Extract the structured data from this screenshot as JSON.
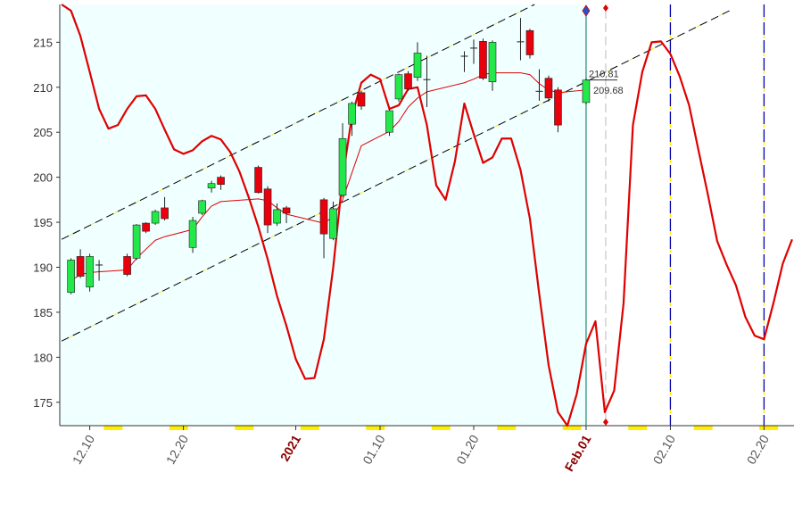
{
  "chart_data": {
    "type": "candlestick",
    "x": [
      8,
      9,
      10,
      11,
      14,
      15,
      16,
      17,
      18,
      21,
      22,
      23,
      24,
      28,
      29,
      30,
      31,
      35,
      36,
      37,
      38,
      39,
      42,
      43,
      44,
      45,
      46,
      50,
      51,
      52,
      53,
      56,
      57,
      58,
      59,
      60,
      63
    ],
    "open": [
      187.2,
      191.2,
      187.8,
      190.3,
      191.2,
      191.0,
      194.9,
      194.9,
      196.6,
      192.2,
      196.0,
      198.8,
      200.0,
      201.1,
      198.7,
      194.9,
      196.6,
      197.5,
      193.2,
      198.0,
      205.9,
      209.4,
      205.0,
      208.7,
      211.5,
      211.1,
      210.8,
      213.4,
      214.3,
      215.1,
      210.6,
      215.0,
      216.3,
      209.5,
      211.0,
      209.7,
      208.3
    ],
    "high": [
      191.0,
      192.0,
      191.5,
      190.8,
      191.5,
      194.8,
      195.0,
      196.4,
      197.8,
      195.6,
      197.5,
      199.6,
      200.2,
      201.3,
      199.0,
      197.1,
      196.8,
      197.7,
      197.3,
      206.0,
      208.4,
      209.6,
      207.6,
      211.5,
      211.8,
      215.0,
      213.5,
      214.0,
      215.3,
      215.4,
      215.2,
      217.7,
      216.5,
      212.0,
      211.3,
      210.0,
      211.0
    ],
    "low": [
      187.0,
      188.8,
      187.3,
      188.5,
      189.0,
      190.8,
      193.8,
      194.7,
      195.2,
      191.6,
      195.8,
      198.3,
      198.6,
      198.2,
      193.8,
      194.6,
      194.9,
      191.0,
      193.0,
      197.8,
      204.6,
      207.5,
      204.6,
      208.4,
      209.6,
      210.7,
      207.8,
      211.7,
      212.6,
      210.8,
      209.6,
      213.0,
      213.2,
      208.5,
      208.4,
      205.0,
      208.1
    ],
    "close": [
      190.8,
      189.0,
      191.2,
      190.2,
      189.2,
      194.7,
      194.0,
      196.2,
      195.4,
      195.2,
      197.4,
      199.3,
      199.2,
      198.3,
      194.7,
      196.4,
      196.0,
      193.7,
      196.5,
      204.3,
      208.2,
      207.9,
      207.4,
      211.4,
      209.8,
      213.8,
      210.9,
      213.5,
      214.4,
      211.0,
      215.0,
      215.1,
      213.6,
      209.6,
      208.8,
      205.8,
      210.8
    ],
    "up_color": "#22e84a",
    "down_color": "#e8000c",
    "series": [
      {
        "color": "#e00000",
        "width": 1,
        "x": [
          8,
          9,
          10,
          11,
          14,
          15,
          16,
          17,
          18,
          21,
          22,
          23,
          24,
          28,
          29,
          30,
          31,
          35,
          36,
          37,
          38,
          39,
          42,
          43,
          44,
          45,
          46,
          50,
          51,
          52,
          53,
          56,
          57,
          58,
          59,
          60,
          63
        ],
        "values": [
          188.5,
          189.2,
          189.4,
          189.5,
          189.7,
          191.0,
          192.0,
          193.0,
          193.4,
          194.2,
          195.6,
          196.8,
          197.3,
          197.6,
          197.4,
          196.6,
          195.9,
          194.9,
          195.6,
          197.5,
          200.5,
          203.5,
          205.1,
          206.2,
          207.8,
          208.8,
          209.5,
          210.5,
          210.9,
          211.4,
          211.6,
          211.6,
          211.4,
          210.4,
          209.7,
          209.4,
          209.7
        ]
      },
      {
        "color": "#e00000",
        "width": 2.2,
        "x": [
          7,
          8,
          9,
          10,
          11,
          12,
          13,
          14,
          15,
          16,
          17,
          18,
          19,
          20,
          21,
          22,
          23,
          24,
          25,
          26,
          27,
          28,
          29,
          30,
          31,
          32,
          33,
          34,
          35,
          36,
          37,
          38,
          39,
          40,
          41,
          42,
          43,
          44,
          45,
          46,
          47,
          48,
          49,
          50,
          51,
          52,
          53,
          54,
          55,
          56,
          57,
          58,
          59,
          60,
          61,
          62,
          63,
          64,
          65,
          66,
          67,
          68,
          69,
          70,
          71,
          72,
          73,
          74,
          75,
          76,
          77,
          78,
          79,
          80,
          81,
          82,
          83,
          84,
          85
        ],
        "values": [
          219.2,
          218.5,
          215.7,
          211.7,
          207.6,
          205.4,
          205.8,
          207.6,
          209.0,
          209.1,
          207.6,
          205.3,
          203.1,
          202.6,
          203.0,
          204.0,
          204.6,
          204.2,
          202.8,
          200.6,
          197.7,
          194.5,
          190.9,
          186.8,
          183.5,
          179.8,
          177.6,
          177.7,
          182.0,
          190.0,
          199.9,
          206.8,
          210.5,
          211.4,
          210.9,
          207.6,
          208.0,
          209.8,
          210.0,
          205.8,
          199.1,
          197.5,
          201.8,
          208.2,
          204.8,
          201.6,
          202.2,
          204.3,
          204.3,
          200.8,
          195.4,
          187.0,
          179.1,
          173.9,
          172.4,
          175.9,
          181.5,
          184.0,
          173.9,
          176.3,
          186.0,
          205.8,
          211.7,
          215.0,
          215.1,
          213.7,
          211.2,
          208.0,
          203.0,
          198.1,
          192.9,
          190.3,
          188.0,
          184.5,
          182.4,
          182.0,
          186.0,
          190.4,
          193.1
        ]
      }
    ],
    "channels": [
      {
        "x": [
          7,
          57.5
        ],
        "values": [
          193.1,
          219.2
        ]
      },
      {
        "x": [
          7,
          78.5
        ],
        "values": [
          181.8,
          218.6
        ]
      }
    ],
    "price_labels": [
      {
        "value": 210.81,
        "label": "210.81"
      },
      {
        "value": 209.68,
        "label": "209.68"
      }
    ],
    "xlim": [
      6.8,
      85.2
    ],
    "ylim": [
      172.4,
      219.2
    ],
    "yticks": [
      175,
      180,
      185,
      190,
      195,
      200,
      205,
      210,
      215
    ],
    "xticks": [
      {
        "value": 10,
        "label": "12.10"
      },
      {
        "value": 20,
        "label": "12.20"
      },
      {
        "value": 32,
        "label": "2021"
      },
      {
        "value": 41,
        "label": "01.10"
      },
      {
        "value": 51,
        "label": "01.20"
      },
      {
        "value": 63,
        "label": "Feb.01"
      },
      {
        "value": 72,
        "label": "02.10"
      },
      {
        "value": 82,
        "label": "02.20"
      }
    ]
  }
}
